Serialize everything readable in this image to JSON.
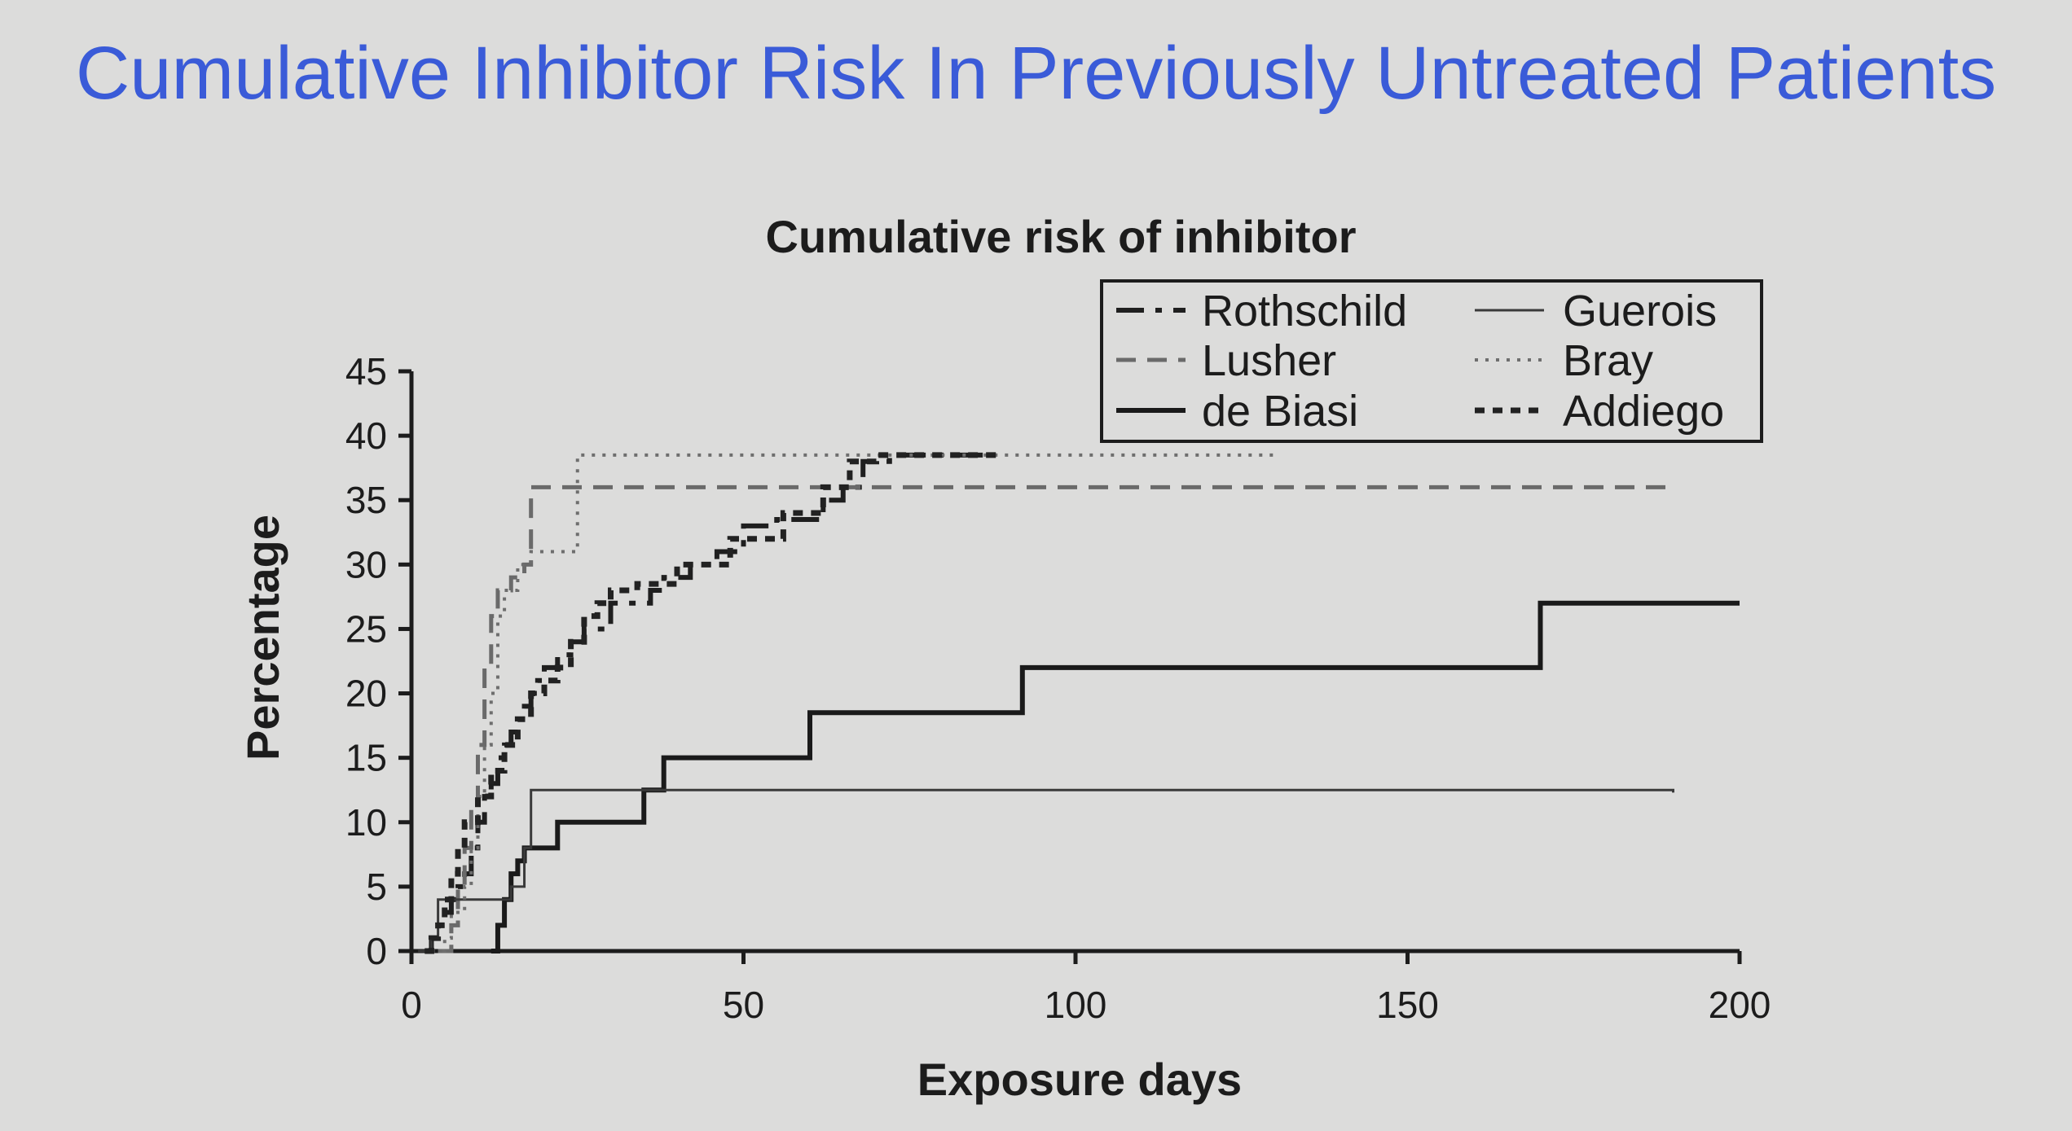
{
  "slide": {
    "title": "Cumulative Inhibitor Risk In Previously Untreated Patients",
    "background": "#dcdcdb",
    "title_color": "#3a5bd8"
  },
  "chart_data": {
    "type": "line",
    "title": "Cumulative risk of inhibitor",
    "xlabel": "Exposure days",
    "ylabel": "Percentage",
    "xlim": [
      0,
      200
    ],
    "ylim": [
      0,
      45
    ],
    "xticks": [
      0,
      50,
      100,
      150,
      200
    ],
    "yticks": [
      0,
      5,
      10,
      15,
      20,
      25,
      30,
      35,
      40,
      45
    ],
    "grid": false,
    "legend_position": "top-right",
    "series": [
      {
        "name": "Rothschild",
        "style": "long-dash-dot",
        "step": true,
        "points": [
          [
            2,
            0
          ],
          [
            3,
            1
          ],
          [
            4,
            2
          ],
          [
            5,
            3
          ],
          [
            6,
            4
          ],
          [
            7,
            5
          ],
          [
            8,
            6
          ],
          [
            9,
            8
          ],
          [
            10,
            10
          ],
          [
            11,
            12
          ],
          [
            12,
            13
          ],
          [
            13,
            15
          ],
          [
            14,
            16
          ],
          [
            15,
            17
          ],
          [
            16,
            18
          ],
          [
            17,
            19
          ],
          [
            18,
            20
          ],
          [
            19,
            21
          ],
          [
            20,
            22
          ],
          [
            22,
            23
          ],
          [
            24,
            24
          ],
          [
            26,
            25
          ],
          [
            30,
            27
          ],
          [
            36,
            28
          ],
          [
            38,
            29
          ],
          [
            42,
            30
          ],
          [
            46,
            31
          ],
          [
            50,
            33
          ],
          [
            55,
            33.5
          ],
          [
            62,
            35
          ],
          [
            65,
            36
          ],
          [
            68,
            38
          ],
          [
            72,
            38.5
          ],
          [
            88,
            38.5
          ]
        ]
      },
      {
        "name": "Lusher",
        "style": "dash",
        "step": true,
        "points": [
          [
            4,
            0
          ],
          [
            6,
            2
          ],
          [
            7,
            5
          ],
          [
            8,
            8
          ],
          [
            9,
            11
          ],
          [
            10,
            16
          ],
          [
            11,
            22
          ],
          [
            12,
            26
          ],
          [
            13,
            28
          ],
          [
            15,
            29
          ],
          [
            17,
            30
          ],
          [
            18,
            36
          ],
          [
            190,
            36
          ]
        ]
      },
      {
        "name": "de Biasi",
        "style": "solid-thick",
        "step": true,
        "points": [
          [
            12,
            0
          ],
          [
            13,
            2
          ],
          [
            14,
            4
          ],
          [
            15,
            6
          ],
          [
            16,
            7
          ],
          [
            17,
            8
          ],
          [
            22,
            10
          ],
          [
            35,
            12.5
          ],
          [
            38,
            15
          ],
          [
            60,
            18.5
          ],
          [
            92,
            22
          ],
          [
            170,
            27
          ],
          [
            200,
            27
          ]
        ]
      },
      {
        "name": "Guerois",
        "style": "solid-thin",
        "step": true,
        "points": [
          [
            1,
            0
          ],
          [
            3,
            1
          ],
          [
            4,
            4
          ],
          [
            15,
            5
          ],
          [
            17,
            8
          ],
          [
            18,
            12.5
          ],
          [
            190,
            12.3
          ]
        ]
      },
      {
        "name": "Bray",
        "style": "dot",
        "step": true,
        "points": [
          [
            3,
            0
          ],
          [
            5,
            1
          ],
          [
            6,
            3
          ],
          [
            8,
            5
          ],
          [
            9,
            8
          ],
          [
            10,
            12
          ],
          [
            11,
            16
          ],
          [
            12,
            20
          ],
          [
            13,
            26
          ],
          [
            14,
            28
          ],
          [
            16,
            30
          ],
          [
            18,
            31
          ],
          [
            24,
            31
          ],
          [
            25,
            38.5
          ],
          [
            130,
            38.5
          ]
        ]
      },
      {
        "name": "Addiego",
        "style": "short-dash",
        "step": true,
        "points": [
          [
            2,
            0
          ],
          [
            3,
            1
          ],
          [
            4,
            2
          ],
          [
            5,
            4
          ],
          [
            6,
            6
          ],
          [
            7,
            8
          ],
          [
            8,
            10
          ],
          [
            10,
            12
          ],
          [
            12,
            14
          ],
          [
            14,
            16
          ],
          [
            16,
            18
          ],
          [
            18,
            20
          ],
          [
            20,
            21
          ],
          [
            22,
            22
          ],
          [
            24,
            24
          ],
          [
            26,
            26
          ],
          [
            28,
            27
          ],
          [
            30,
            28
          ],
          [
            34,
            28.5
          ],
          [
            40,
            30
          ],
          [
            48,
            32
          ],
          [
            56,
            34
          ],
          [
            62,
            36
          ],
          [
            66,
            38
          ],
          [
            70,
            38.5
          ],
          [
            88,
            38.5
          ]
        ]
      }
    ]
  }
}
